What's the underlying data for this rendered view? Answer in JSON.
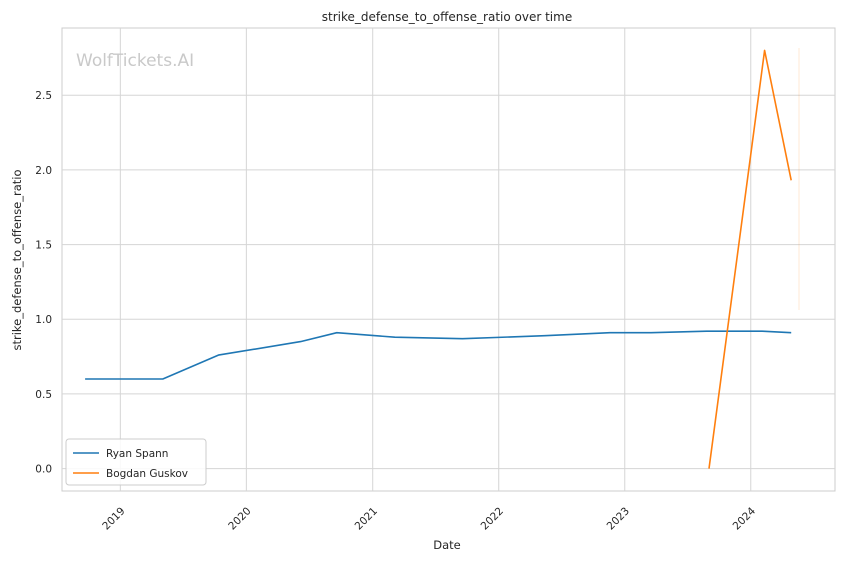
{
  "watermark": "WolfTickets.AI",
  "chart_data": {
    "type": "line",
    "title": "strike_defense_to_offense_ratio over time",
    "xlabel": "Date",
    "ylabel": "strike_defense_to_offense_ratio",
    "x_ticks": [
      "2019",
      "2020",
      "2021",
      "2022",
      "2023",
      "2024"
    ],
    "y_ticks": [
      "0.0",
      "0.5",
      "1.0",
      "1.5",
      "2.0",
      "2.5"
    ],
    "xlim": [
      "2018-07-16",
      "2024-09-01"
    ],
    "ylim": [
      -0.15,
      2.95
    ],
    "grid": true,
    "legend": {
      "position": "lower-left"
    },
    "series": [
      {
        "name": "Ryan Spann",
        "color": "#1f77b4",
        "points": [
          [
            "2018-09-21",
            0.6
          ],
          [
            "2019-05-04",
            0.6
          ],
          [
            "2019-10-12",
            0.76
          ],
          [
            "2020-06-06",
            0.85
          ],
          [
            "2020-09-19",
            0.91
          ],
          [
            "2021-03-06",
            0.88
          ],
          [
            "2021-09-18",
            0.87
          ],
          [
            "2022-05-14",
            0.89
          ],
          [
            "2022-11-19",
            0.91
          ],
          [
            "2023-03-18",
            0.91
          ],
          [
            "2023-08-26",
            0.92
          ],
          [
            "2024-02-03",
            0.92
          ],
          [
            "2024-04-27",
            0.91
          ]
        ]
      },
      {
        "name": "Bogdan Guskov",
        "color": "#ff7f0e",
        "points": [
          [
            "2023-09-02",
            0.0
          ],
          [
            "2024-02-10",
            2.8
          ],
          [
            "2024-04-27",
            1.93
          ]
        ]
      }
    ]
  }
}
